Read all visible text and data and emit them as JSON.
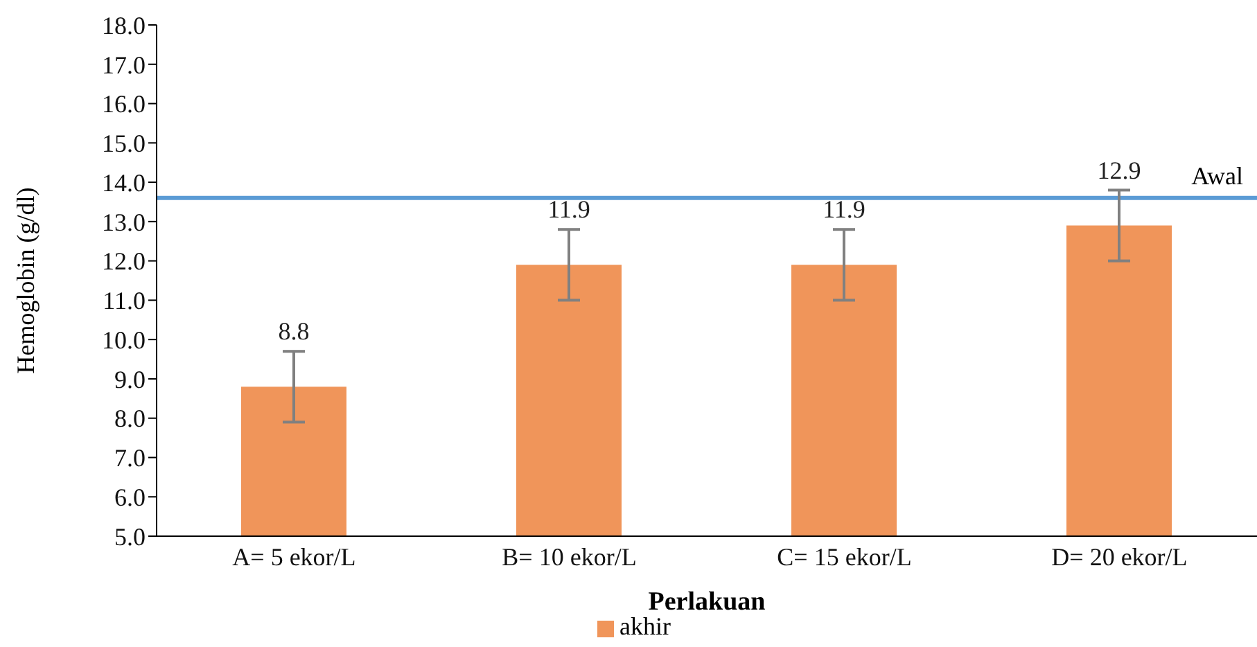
{
  "chart_data": {
    "type": "bar",
    "xlabel": "Perlakuan",
    "ylabel": "Hemoglobin (g/dl)",
    "categories": [
      "A= 5 ekor/L",
      "B= 10 ekor/L",
      "C= 15 ekor/L",
      "D= 20 ekor/L"
    ],
    "series": [
      {
        "name": "akhir",
        "color": "#f0955a",
        "values": [
          8.8,
          11.9,
          11.9,
          12.9
        ],
        "errors": [
          0.9,
          0.9,
          0.9,
          0.9
        ]
      }
    ],
    "ylim": [
      5,
      18
    ],
    "yticks": [
      {
        "value": 5,
        "label": "5.0"
      },
      {
        "value": 6,
        "label": "6.0"
      },
      {
        "value": 7,
        "label": "7.0"
      },
      {
        "value": 8,
        "label": "8.0"
      },
      {
        "value": 9,
        "label": "9.0"
      },
      {
        "value": 10,
        "label": "10.0"
      },
      {
        "value": 11,
        "label": "11.0"
      },
      {
        "value": 12,
        "label": "12.0"
      },
      {
        "value": 13,
        "label": "13.0"
      },
      {
        "value": 14,
        "label": "14.0"
      },
      {
        "value": 15,
        "label": "15.0"
      },
      {
        "value": 16,
        "label": "16.0"
      },
      {
        "value": 17,
        "label": "17.0"
      },
      {
        "value": 18,
        "label": "18.0"
      }
    ],
    "ref_lines": [
      {
        "axis": "y",
        "value": 13.6,
        "label": "Awal",
        "color": "#5b9bd5"
      }
    ],
    "data_labels": true,
    "grid": false,
    "legend": "bottom"
  }
}
